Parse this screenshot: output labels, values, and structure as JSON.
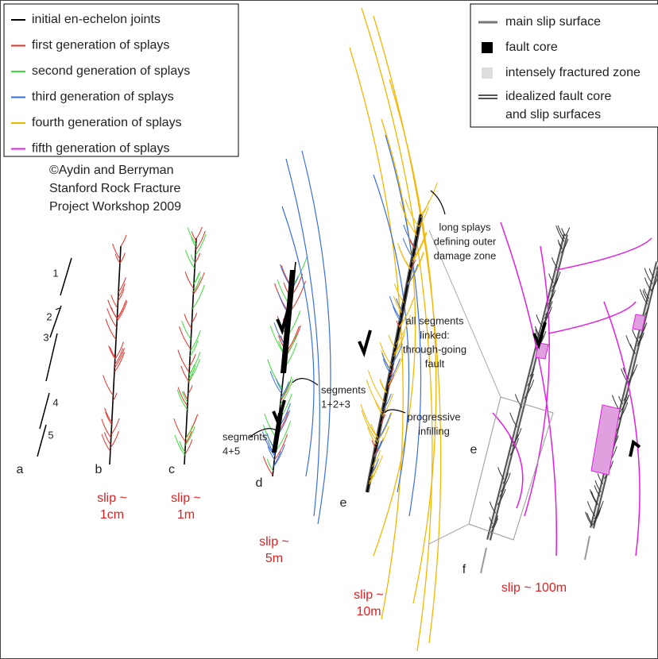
{
  "legend_left": {
    "items": [
      {
        "label": "initial en-echelon joints",
        "color": "#000000"
      },
      {
        "label": "first generation of splays",
        "color": "#e8312a"
      },
      {
        "label": "second generation of splays",
        "color": "#3ddc3d"
      },
      {
        "label": "third generation of splays",
        "color": "#3a6fd8"
      },
      {
        "label": "fourth generation of splays",
        "color": "#f2b705"
      },
      {
        "label": "fifth generation of splays",
        "color": "#e020e0"
      }
    ]
  },
  "credit": [
    "©Aydin and Berryman",
    "Stanford Rock Fracture",
    "Project Workshop 2009"
  ],
  "legend_right": {
    "items": [
      {
        "label": [
          "main slip surface"
        ]
      },
      {
        "label": [
          "fault core"
        ]
      },
      {
        "label": [
          "intensely fractured zone"
        ]
      },
      {
        "label": [
          "idealized fault core",
          "and slip surfaces"
        ]
      }
    ]
  },
  "segment_numbers": [
    "1",
    "2",
    "3",
    "4",
    "5"
  ],
  "panels": [
    {
      "letter": "a"
    },
    {
      "letter": "b",
      "slip": [
        "slip ~",
        "1cm"
      ]
    },
    {
      "letter": "c",
      "slip": [
        "slip ~",
        "1m"
      ]
    },
    {
      "letter": "d",
      "slip": [
        "slip ~",
        "5m"
      ]
    },
    {
      "letter": "e",
      "slip": [
        "slip ~",
        "10m"
      ]
    },
    {
      "letter": "e"
    },
    {
      "letter": "f",
      "slip": [
        "slip ~ 100m"
      ]
    }
  ],
  "annotations": {
    "segments_123": [
      "segments",
      "1+2+3"
    ],
    "segments_45": [
      "segments",
      "4+5"
    ],
    "long_splays": [
      "long splays",
      "defining outer",
      "damage zone"
    ],
    "all_linked": [
      "all segments",
      "linked:",
      "through-going",
      "fault"
    ],
    "infilling": [
      "progressive",
      "infilling"
    ]
  }
}
